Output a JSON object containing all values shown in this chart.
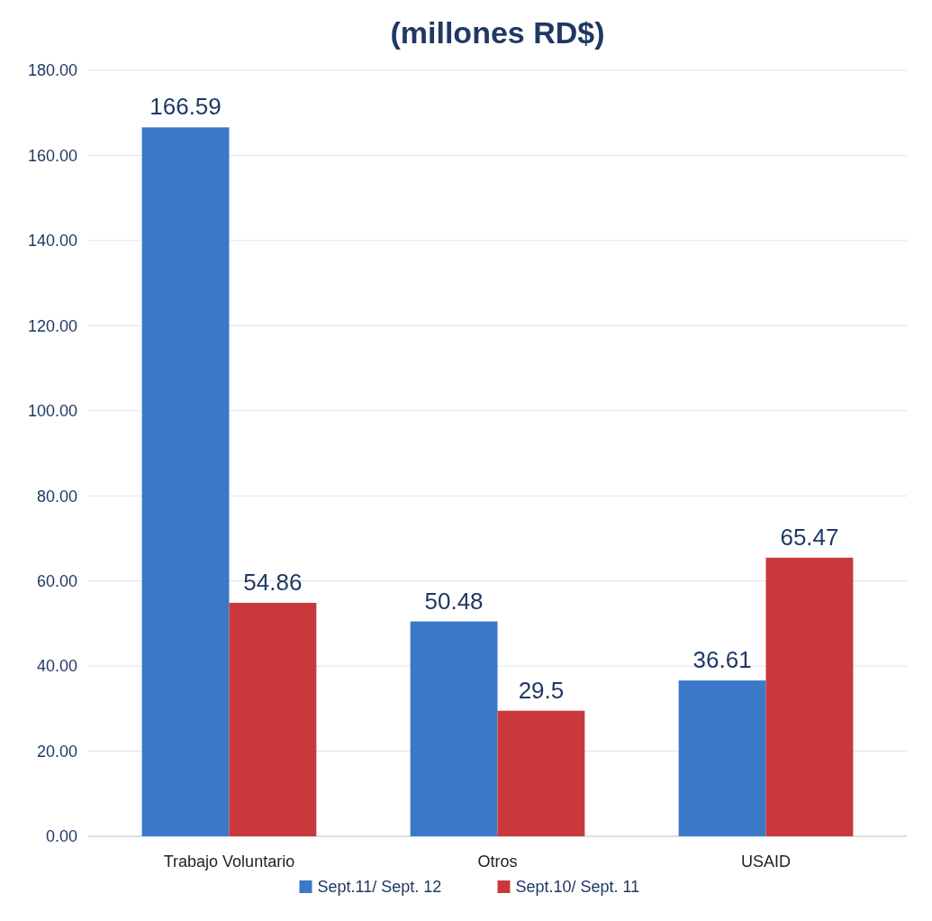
{
  "chart_data": {
    "type": "bar",
    "title": "(millones RD$)",
    "categories": [
      "Trabajo Voluntario",
      "Otros",
      "USAID"
    ],
    "series": [
      {
        "name": "Sept.11/ Sept. 12",
        "color": "#3a78c9",
        "values": [
          166.59,
          50.48,
          36.61
        ]
      },
      {
        "name": "Sept.10/ Sept. 11",
        "color": "#c9383a",
        "values": [
          54.86,
          29.5,
          65.47
        ]
      }
    ],
    "ylim": [
      0,
      180
    ],
    "yticks": [
      {
        "value": 0,
        "label": "0.00"
      },
      {
        "value": 20,
        "label": "20.00"
      },
      {
        "value": 40,
        "label": "40.00"
      },
      {
        "value": 60,
        "label": "60.00"
      },
      {
        "value": 80,
        "label": "80.00"
      },
      {
        "value": 100,
        "label": "100.00"
      },
      {
        "value": 120,
        "label": "120.00"
      },
      {
        "value": 140,
        "label": "140.00"
      },
      {
        "value": 160,
        "label": "160.00"
      },
      {
        "value": 180,
        "label": "180.00"
      }
    ],
    "grid": "y",
    "legend": "bottom",
    "data_labels": true
  }
}
